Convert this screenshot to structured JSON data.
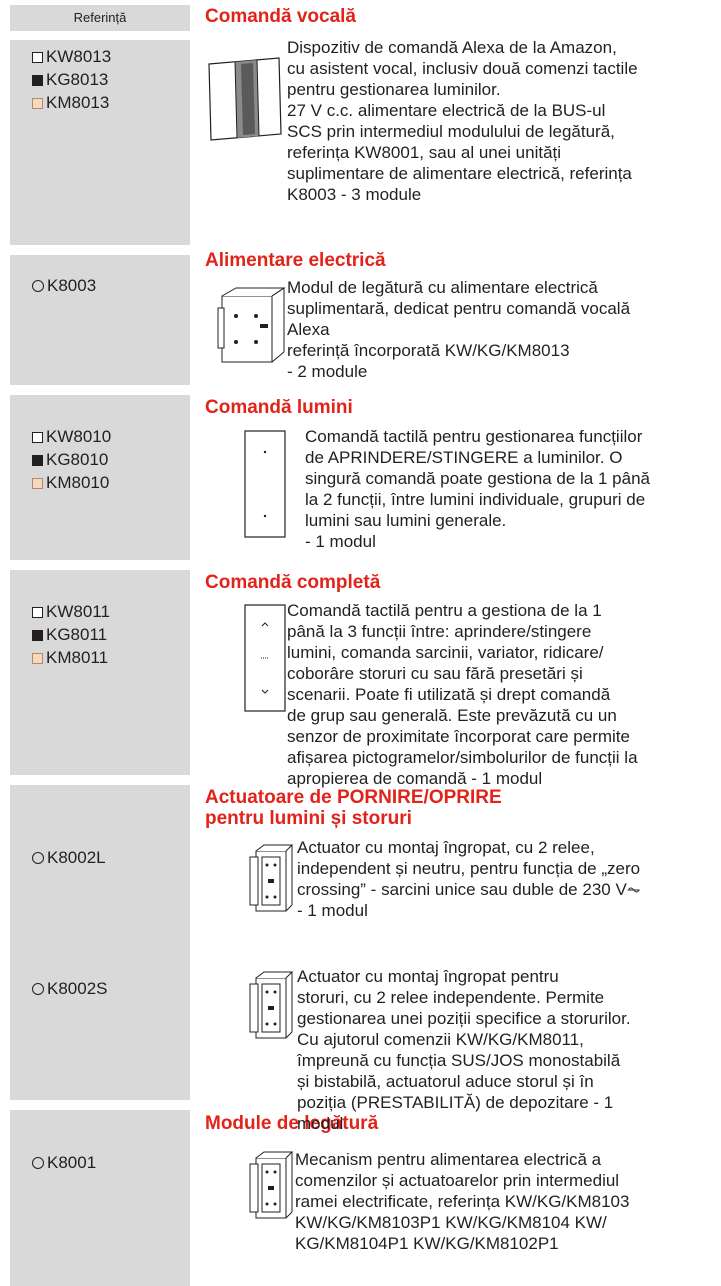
{
  "header": {
    "reference": "Referință"
  },
  "sections": [
    {
      "title": "Comandă vocală",
      "refs": [
        "KW8013",
        "KG8013",
        "KM8013"
      ],
      "items": [
        {
          "lines": [
            "Dispozitiv de comandă Alexa de la Amazon,",
            "cu asistent vocal, inclusiv două comenzi tactile",
            "pentru gestionarea luminilor.",
            "27 V c.c. alimentare electrică de la BUS-ul",
            "SCS prin intermediul modulului de legătură,",
            "referința KW8001, sau al unei unități",
            "suplimentare de alimentare electrică, referința",
            "K8003 - 3 module"
          ]
        }
      ]
    },
    {
      "title": "Alimentare electrică",
      "refs": [
        "K8003"
      ],
      "items": [
        {
          "lines": [
            "Modul de legătură cu alimentare electrică",
            "suplimentară, dedicat pentru comandă vocală",
            "Alexa",
            "referință încorporată KW/KG/KM8013",
            "- 2 module"
          ]
        }
      ]
    },
    {
      "title": "Comandă lumini",
      "refs": [
        "KW8010",
        "KG8010",
        "KM8010"
      ],
      "items": [
        {
          "lines": [
            "Comandă tactilă pentru gestionarea funcțiilor",
            "de APRINDERE/STINGERE a luminilor. O",
            "singură comandă poate gestiona de la 1 până",
            "la 2 funcții, între lumini individuale, grupuri de",
            "lumini sau lumini generale.",
            "- 1 modul"
          ]
        }
      ]
    },
    {
      "title": "Comandă completă",
      "refs": [
        "KW8011",
        "KG8011",
        "KM8011"
      ],
      "items": [
        {
          "lines": [
            "Comandă tactilă pentru a gestiona de la 1",
            "până la 3 funcții între: aprindere/stingere",
            "lumini, comanda sarcinii, variator, ridicare/",
            "coborâre storuri cu sau fără presetări și",
            "scenarii. Poate fi utilizată și drept comandă",
            "de grup sau generală. Este prevăzută cu un",
            "senzor de proximitate încorporat care permite",
            "afișarea pictogramelor/simbolurilor de funcții la",
            "apropierea de comandă - 1 modul"
          ]
        }
      ]
    },
    {
      "title": "Actuatoare de PORNIRE/OPRIRE pentru lumini și storuri",
      "refs": [
        "K8002L",
        "K8002S"
      ],
      "items": [
        {
          "lines": [
            "Actuator cu montaj îngropat, cu 2 relee,",
            "independent și neutru, pentru funcția de „zero",
            "crossing” - sarcini unice sau duble de 230 V⏦",
            "- 1 modul"
          ]
        },
        {
          "lines": [
            "Actuator cu montaj îngropat pentru",
            "storuri, cu 2 relee independente. Permite",
            "gestionarea unei poziții specifice a storurilor.",
            "Cu ajutorul comenzii KW/KG/KM8011,",
            "împreună cu funcția SUS/JOS monostabilă",
            "și bistabilă, actuatorul aduce storul și în",
            "poziția (PRESTABILITĂ) de depozitare - 1",
            "modul"
          ]
        }
      ]
    },
    {
      "title": "Module de legătură",
      "refs": [
        "K8001"
      ],
      "items": [
        {
          "lines": [
            "Mecanism pentru alimentarea electrică a",
            "comenzilor și actuatoarelor prin intermediul",
            "ramei electrificate, referința KW/KG/KM8103",
            "KW/KG/KM8103P1 KW/KG/KM8104 KW/",
            "KG/KM8104P1 KW/KG/KM8102P1"
          ]
        }
      ]
    }
  ]
}
